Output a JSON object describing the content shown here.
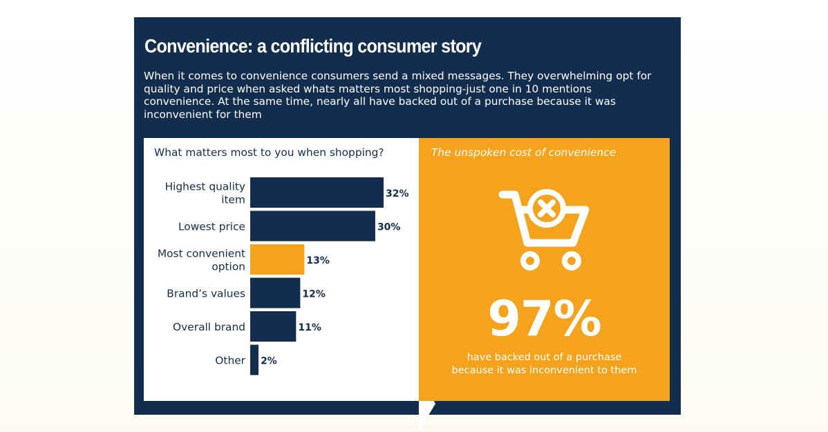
{
  "header": {
    "title": "Convenience: a conflicting consumer story",
    "intro": "When it comes to convenience consumers send a mixed messages. They overwhelming opt for quality and price when asked whats matters most shopping-just one in 10 mentions convenience. At the same time, nearly all have backed out of a purchase because it was inconvenient for them"
  },
  "colors": {
    "navy": "#132d4f",
    "orange": "#f5a31d",
    "white": "#ffffff"
  },
  "chart_data": {
    "type": "bar",
    "orientation": "horizontal",
    "title": "What matters most to you when shopping?",
    "categories": [
      "Highest quality item",
      "Lowest price",
      "Most convenient option",
      "Brand’s values",
      "Overall brand",
      "Other"
    ],
    "category_lines": [
      [
        "Highest quality",
        "item"
      ],
      [
        "Lowest price"
      ],
      [
        "Most convenient",
        "option"
      ],
      [
        "Brand’s values"
      ],
      [
        "Overall brand"
      ],
      [
        "Other"
      ]
    ],
    "values": [
      32,
      30,
      13,
      12,
      11,
      2
    ],
    "value_labels": [
      "32%",
      "30%",
      "13%",
      "12%",
      "11%",
      "2%"
    ],
    "highlight_index": 2,
    "bar_colors": [
      "#132d4f",
      "#132d4f",
      "#f5a31d",
      "#132d4f",
      "#132d4f",
      "#132d4f"
    ],
    "xlim": [
      0,
      32
    ],
    "unit": "%",
    "grid": false,
    "legend": "none"
  },
  "callout": {
    "title": "The unspoken cost of convenience",
    "icon": "shopping-cart-cancel-icon",
    "stat": "97%",
    "caption_lines": [
      "have backed out of a purchase",
      "because it was inconvenient to them"
    ]
  }
}
